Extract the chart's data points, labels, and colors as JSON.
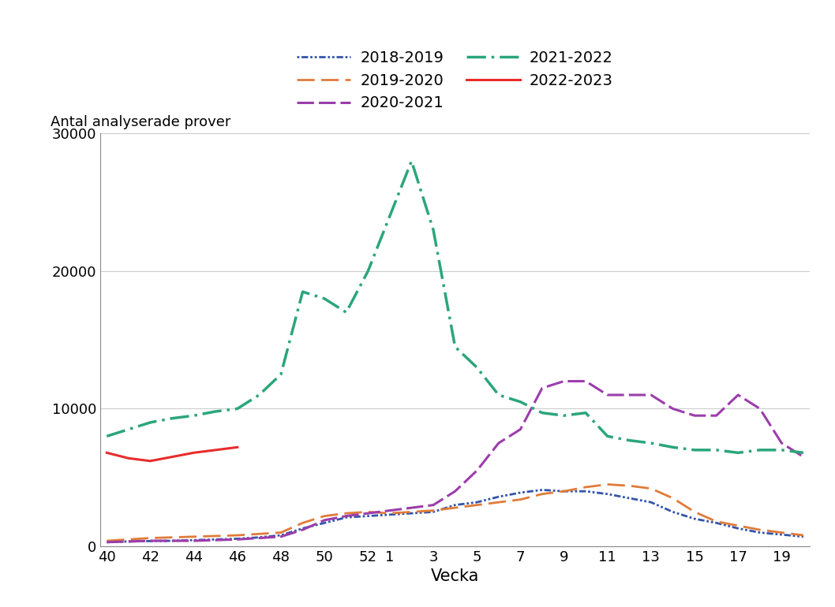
{
  "xlabel": "Vecka",
  "ylabel": "Antal analyserade prover",
  "ylim": [
    0,
    30000
  ],
  "yticks": [
    0,
    10000,
    20000,
    30000
  ],
  "xtick_labels": [
    "40",
    "42",
    "44",
    "46",
    "48",
    "50",
    "52",
    "1",
    "3",
    "5",
    "7",
    "9",
    "11",
    "13",
    "15",
    "17",
    "19"
  ],
  "tick_weeks": [
    40,
    42,
    44,
    46,
    48,
    50,
    52,
    1,
    3,
    5,
    7,
    9,
    11,
    13,
    15,
    17,
    19
  ],
  "xlabel_fontsize": 15,
  "ylabel_fontsize": 13,
  "tick_fontsize": 13,
  "legend_fontsize": 14,
  "series": {
    "2018-2019": {
      "color": "#3355aa",
      "linestyle": "dotted_dash",
      "linewidth": 2.0,
      "weeks": [
        40,
        41,
        42,
        43,
        44,
        45,
        46,
        47,
        48,
        49,
        50,
        51,
        52,
        1,
        2,
        3,
        4,
        5,
        6,
        7,
        8,
        9,
        10,
        11,
        12,
        13,
        14,
        15,
        16,
        17,
        18,
        19,
        20
      ],
      "values": [
        300,
        350,
        380,
        400,
        450,
        500,
        550,
        650,
        800,
        1300,
        1700,
        2100,
        2200,
        2300,
        2400,
        2500,
        3000,
        3200,
        3600,
        3900,
        4100,
        4000,
        4000,
        3800,
        3500,
        3200,
        2500,
        2000,
        1700,
        1300,
        1000,
        850,
        700
      ]
    },
    "2019-2020": {
      "color": "#e07b39",
      "linestyle": "dashed_long",
      "linewidth": 2.0,
      "weeks": [
        40,
        41,
        42,
        43,
        44,
        45,
        46,
        47,
        48,
        49,
        50,
        51,
        52,
        1,
        2,
        3,
        4,
        5,
        6,
        7,
        8,
        9,
        10,
        11,
        12,
        13,
        14,
        15,
        16,
        17,
        18,
        19,
        20
      ],
      "values": [
        400,
        500,
        600,
        650,
        700,
        750,
        800,
        900,
        1000,
        1700,
        2200,
        2400,
        2500,
        2400,
        2500,
        2600,
        2800,
        3000,
        3200,
        3400,
        3800,
        4000,
        4300,
        4500,
        4400,
        4200,
        3500,
        2500,
        1800,
        1500,
        1200,
        1000,
        800
      ]
    },
    "2020-2021": {
      "color": "#9b3dab",
      "linestyle": "dashed",
      "linewidth": 2.2,
      "weeks": [
        40,
        41,
        42,
        43,
        44,
        45,
        46,
        47,
        48,
        49,
        50,
        51,
        52,
        1,
        2,
        3,
        4,
        5,
        6,
        7,
        8,
        9,
        10,
        11,
        12,
        13,
        14,
        15,
        16,
        17,
        18,
        19,
        20
      ],
      "values": [
        300,
        350,
        400,
        400,
        400,
        450,
        500,
        600,
        700,
        1200,
        1900,
        2200,
        2400,
        2600,
        2800,
        3000,
        4000,
        5500,
        7500,
        8500,
        11500,
        12000,
        12000,
        11000,
        11000,
        11000,
        10000,
        9500,
        9500,
        11000,
        10000,
        7500,
        6500
      ]
    },
    "2021-2022": {
      "color": "#2aa67a",
      "linestyle": "dashdot",
      "linewidth": 2.5,
      "weeks": [
        40,
        41,
        42,
        43,
        44,
        45,
        46,
        47,
        48,
        49,
        50,
        51,
        52,
        1,
        2,
        3,
        4,
        5,
        6,
        7,
        8,
        9,
        10,
        11,
        12,
        13,
        14,
        15,
        16,
        17,
        18,
        19,
        20
      ],
      "values": [
        8000,
        8500,
        9000,
        9300,
        9500,
        9800,
        10000,
        11000,
        12500,
        18500,
        18000,
        17000,
        20000,
        24000,
        28000,
        23000,
        14500,
        13000,
        11000,
        10500,
        9700,
        9500,
        9700,
        8000,
        7700,
        7500,
        7200,
        7000,
        7000,
        6800,
        7000,
        7000,
        6800
      ]
    },
    "2022-2023": {
      "color": "#e82c2c",
      "linestyle": "solid",
      "linewidth": 2.2,
      "weeks": [
        40,
        41,
        42,
        43,
        44,
        45,
        46
      ],
      "values": [
        6800,
        6400,
        6200,
        6500,
        6800,
        7000,
        7200
      ]
    }
  },
  "series_order": [
    "2018-2019",
    "2019-2020",
    "2020-2021",
    "2021-2022",
    "2022-2023"
  ]
}
